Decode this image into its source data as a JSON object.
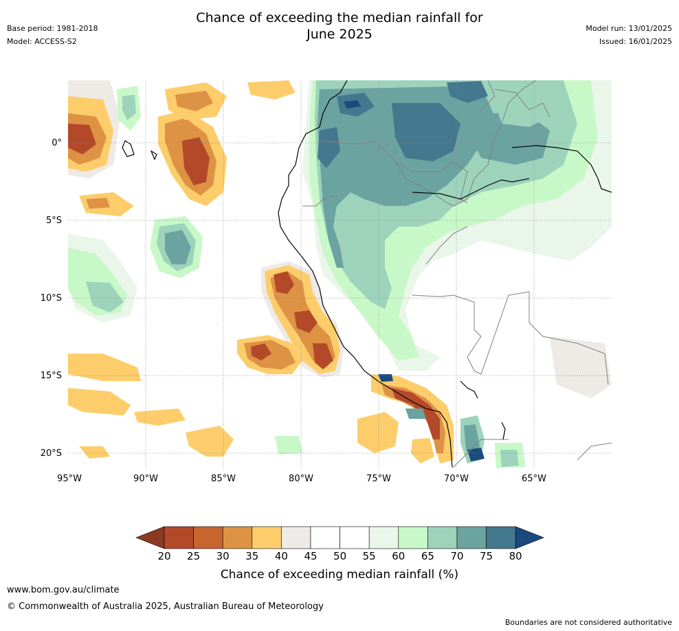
{
  "header": {
    "title_line1": "Chance of exceeding the median rainfall for",
    "title_line2": "June 2025",
    "base_period": "Base period: 1981-2018",
    "model": "Model: ACCESS-S2",
    "model_run": "Model run: 13/01/2025",
    "issued": "Issued: 16/01/2025"
  },
  "map": {
    "lon_labels": [
      "95°W",
      "90°W",
      "85°W",
      "80°W",
      "75°W",
      "70°W",
      "65°W"
    ],
    "lat_labels": [
      "0°",
      "5°S",
      "10°S",
      "15°S",
      "20°S"
    ],
    "grid": true
  },
  "colorbar": {
    "ticks": [
      "20",
      "25",
      "30",
      "35",
      "40",
      "45",
      "50",
      "55",
      "60",
      "65",
      "70",
      "75",
      "80"
    ],
    "label": "Chance of exceeding median rainfall (%)",
    "colors": [
      "#8c3a22",
      "#b4492a",
      "#c8652f",
      "#dd9244",
      "#fdcd6b",
      "#eeeae6",
      "#ffffff",
      "#ffffff",
      "#eaf6ea",
      "#c8f8c8",
      "#9ed3bb",
      "#6ba3a0",
      "#44788f",
      "#1a4a7e"
    ]
  },
  "footer": {
    "website": "www.bom.gov.au/climate",
    "copyright": "© Commonwealth of Australia 2025, Australian Bureau of Meteorology",
    "disclaimer": "Boundaries are not considered authoritative"
  }
}
